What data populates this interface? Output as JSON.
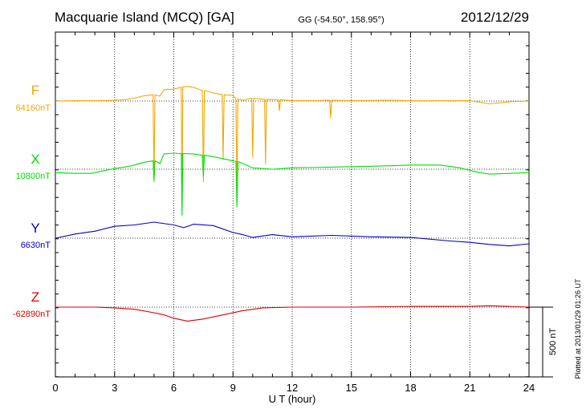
{
  "header": {
    "station": "Macquarie Island (MCQ)  [GA]",
    "coords": "GG (-54.50°, 158.95°)",
    "date": "2012/12/29"
  },
  "footer": {
    "plotted": "Plotted at 2013/01/29 01:26 UT"
  },
  "scale_bar": {
    "label": "500 nT",
    "value_nT": 500
  },
  "colors": {
    "F": "#f5a700",
    "X": "#00e000",
    "Y": "#0000cc",
    "Z": "#dd0000"
  },
  "chart_data": {
    "type": "line",
    "title": "Macquarie Island (MCQ)  [GA]",
    "xlabel": "U T (hour)",
    "xlim": [
      0,
      24
    ],
    "x_ticks": [
      "0",
      "3",
      "6",
      "9",
      "12",
      "15",
      "18",
      "21",
      "24"
    ],
    "grid": true,
    "units": "nT",
    "series": [
      {
        "name": "F",
        "baseline_label": "64160nT",
        "baseline_nT": 64160,
        "x": [
          0,
          1,
          2,
          3,
          3.5,
          4,
          4.5,
          4.95,
          5.0,
          5.05,
          5.3,
          5.5,
          6.0,
          6.38,
          6.42,
          6.46,
          6.7,
          7.0,
          7.45,
          7.5,
          7.55,
          8.0,
          8.45,
          8.5,
          8.55,
          9.0,
          9.15,
          9.2,
          9.25,
          9.5,
          9.95,
          10.0,
          10.05,
          10.6,
          10.65,
          10.7,
          11.3,
          11.35,
          11.4,
          12,
          13,
          13.9,
          13.95,
          14.0,
          15,
          17,
          18,
          21,
          22,
          23,
          24
        ],
        "y": [
          0,
          3,
          2,
          5,
          10,
          20,
          38,
          45,
          -580,
          45,
          35,
          80,
          85,
          100,
          -700,
          100,
          105,
          98,
          75,
          -580,
          75,
          58,
          45,
          -420,
          45,
          40,
          15,
          -620,
          15,
          5,
          20,
          -400,
          20,
          12,
          -450,
          12,
          10,
          -70,
          10,
          2,
          3,
          5,
          -120,
          5,
          3,
          5,
          2,
          3,
          -20,
          -5,
          0
        ]
      },
      {
        "name": "X",
        "baseline_label": "10800nT",
        "baseline_nT": 10800,
        "x": [
          0,
          1,
          1.8,
          2.5,
          3,
          3.5,
          4,
          4.5,
          4.95,
          5.0,
          5.05,
          5.3,
          5.5,
          6,
          6.38,
          6.42,
          6.46,
          7,
          7.45,
          7.5,
          7.55,
          8,
          9,
          9.15,
          9.2,
          9.25,
          10,
          11,
          12,
          14,
          17,
          18,
          19.5,
          20.5,
          21.5,
          22,
          24
        ],
        "y": [
          -25,
          -30,
          -30,
          -10,
          5,
          15,
          30,
          50,
          60,
          -80,
          60,
          40,
          110,
          115,
          112,
          -330,
          112,
          110,
          100,
          -50,
          100,
          90,
          60,
          55,
          -270,
          55,
          10,
          0,
          10,
          15,
          25,
          30,
          30,
          10,
          -25,
          -35,
          -25
        ]
      },
      {
        "name": "Y",
        "baseline_label": "6630nT",
        "baseline_nT": 6630,
        "x": [
          0,
          1,
          2,
          3,
          4,
          5,
          6,
          6.5,
          7,
          8,
          9,
          9.5,
          10,
          11,
          12,
          14,
          16,
          18,
          20,
          21,
          22,
          23,
          24
        ],
        "y": [
          0,
          30,
          50,
          85,
          95,
          115,
          95,
          75,
          100,
          90,
          40,
          25,
          5,
          25,
          10,
          20,
          10,
          5,
          -20,
          -30,
          -45,
          -55,
          -40
        ]
      },
      {
        "name": "Z",
        "baseline_label": "-62890nT",
        "baseline_nT": -62890,
        "x": [
          0,
          2,
          3,
          4,
          5,
          5.5,
          6,
          6.7,
          7.5,
          8.5,
          9.5,
          10.5,
          12,
          15,
          18,
          21,
          22,
          23,
          24
        ],
        "y": [
          0,
          0,
          -5,
          -15,
          -40,
          -55,
          -80,
          -100,
          -85,
          -55,
          -25,
          -5,
          0,
          0,
          5,
          5,
          10,
          5,
          0
        ]
      }
    ]
  }
}
